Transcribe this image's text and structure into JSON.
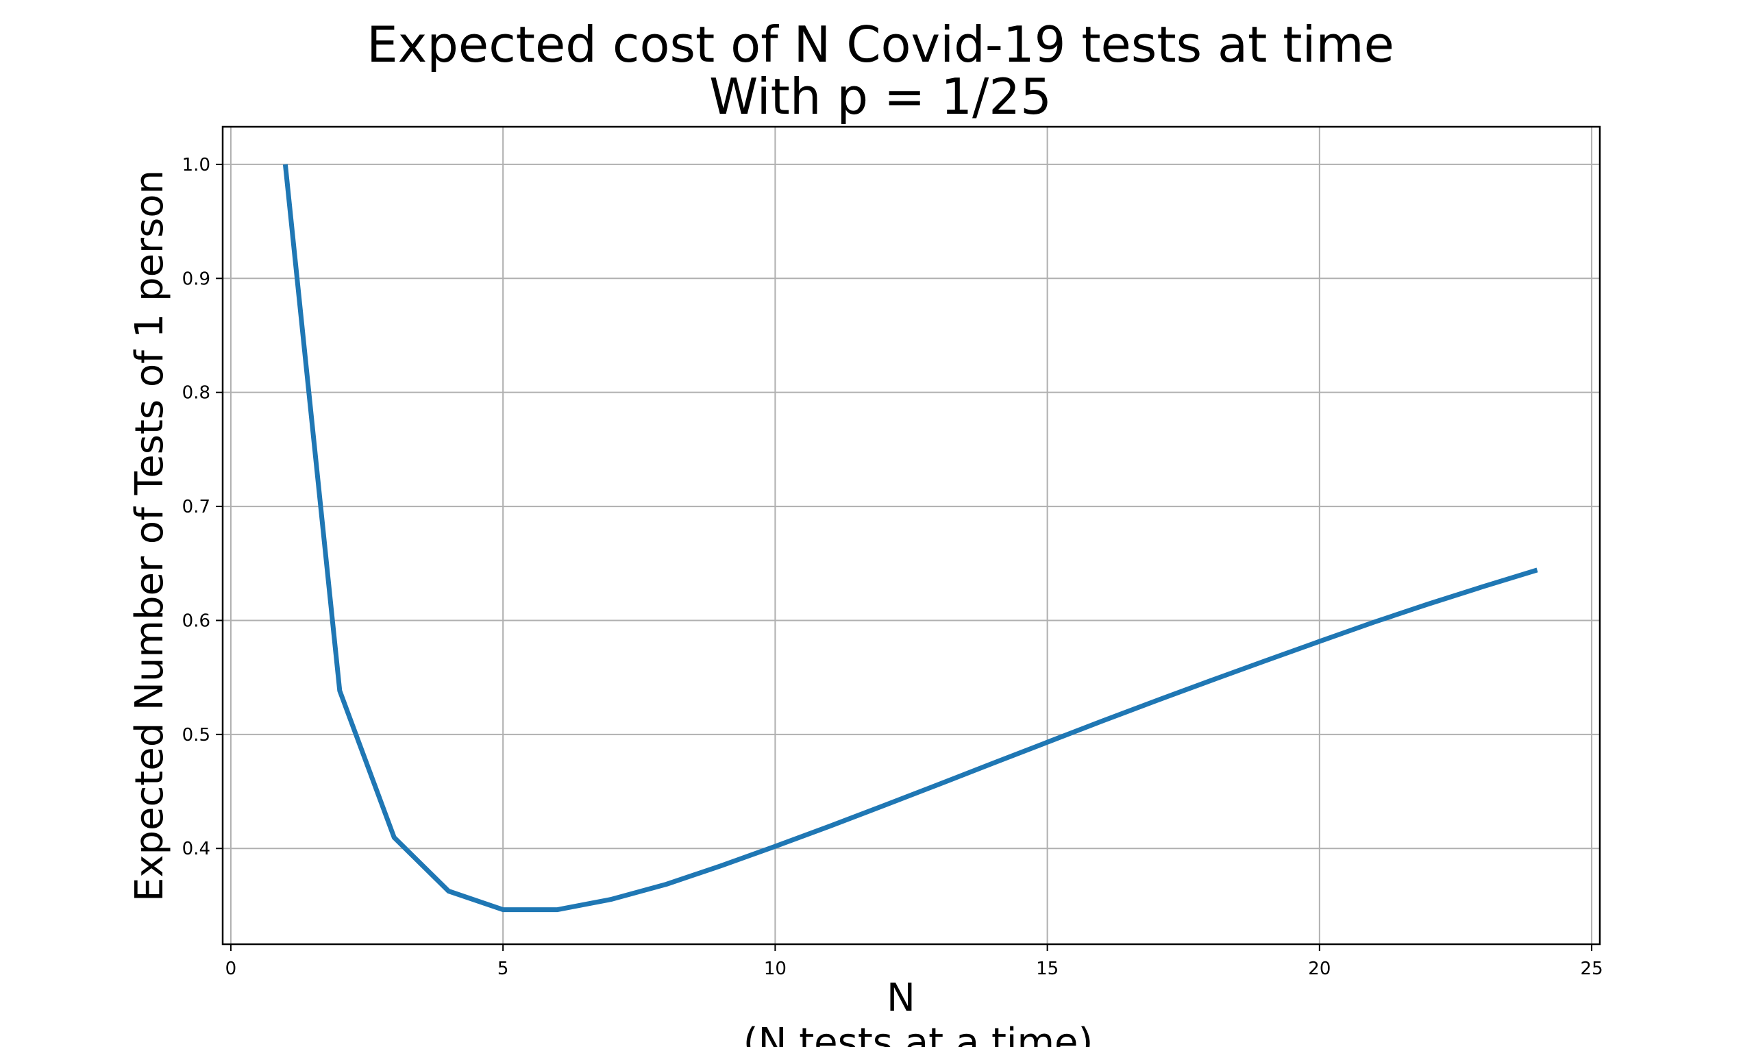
{
  "chart_data": {
    "type": "line",
    "title_lines": [
      "Expected cost of N Covid-19 tests at time",
      "With p = 1/25"
    ],
    "xlabel_lines": [
      "N",
      "(N tests at a time)"
    ],
    "ylabel": "Expected Number of Tests of 1 person",
    "xlim": [
      -0.15,
      25.15
    ],
    "ylim": [
      0.316,
      1.033
    ],
    "xticks": [
      0,
      5,
      10,
      15,
      20,
      25
    ],
    "xtick_labels": [
      "0",
      "5",
      "10",
      "15",
      "20",
      "25"
    ],
    "yticks": [
      0.4,
      0.5,
      0.6,
      0.7,
      0.8,
      0.9,
      1.0
    ],
    "ytick_labels": [
      "0.4",
      "0.5",
      "0.6",
      "0.7",
      "0.8",
      "0.9",
      "1.0"
    ],
    "grid": true,
    "series": [
      {
        "color": "#1f77b4",
        "x": [
          1,
          2,
          3,
          4,
          5,
          6,
          7,
          8,
          9,
          10,
          11,
          12,
          13,
          14,
          15,
          16,
          17,
          18,
          19,
          20,
          21,
          22,
          23,
          24
        ],
        "values": [
          1.0,
          0.5384,
          0.4096,
          0.3626,
          0.3463,
          0.3463,
          0.3555,
          0.3686,
          0.3847,
          0.4018,
          0.4195,
          0.4377,
          0.4561,
          0.4747,
          0.4932,
          0.5116,
          0.5296,
          0.5472,
          0.5645,
          0.5816,
          0.5985,
          0.6144,
          0.6296,
          0.6442
        ]
      }
    ]
  }
}
